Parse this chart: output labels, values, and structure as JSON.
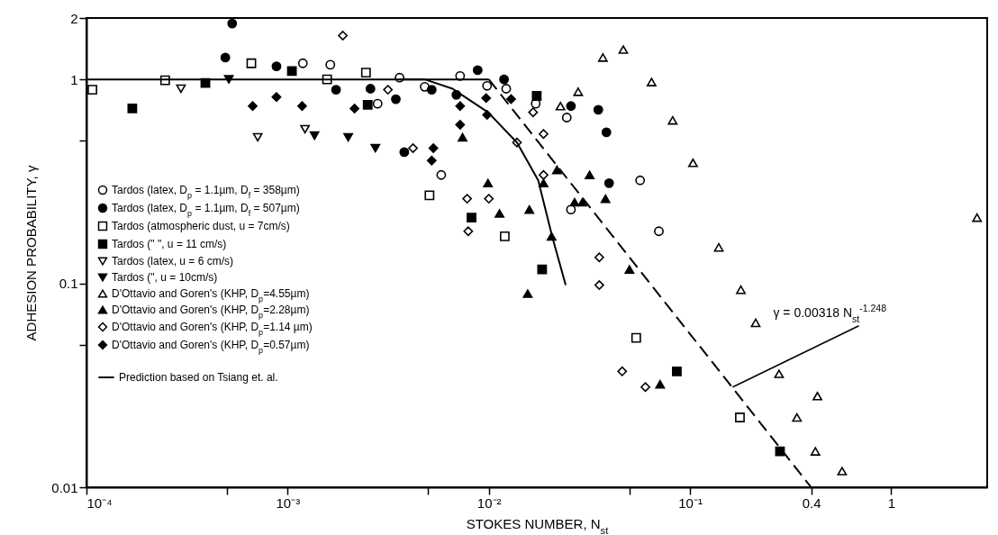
{
  "chart_data": {
    "type": "scatter",
    "xlabel": "STOKES NUMBER, N$_{st}$",
    "ylabel": "ADHESION PROBABILITY, γ",
    "log": "xy",
    "xlim": [
      0.0001,
      3
    ],
    "ylim": [
      0.01,
      2
    ],
    "xticks": [
      {
        "value": 0.0001,
        "label": "10⁻⁴"
      },
      {
        "value": 0.0005,
        "label": null
      },
      {
        "value": 0.001,
        "label": "10⁻³"
      },
      {
        "value": 0.005,
        "label": null
      },
      {
        "value": 0.01,
        "label": "10⁻²"
      },
      {
        "value": 0.05,
        "label": null
      },
      {
        "value": 0.1,
        "label": "10⁻¹"
      },
      0.4,
      1
    ],
    "yticks": [
      0.01,
      {
        "value": 0.05,
        "label": null
      },
      0.1,
      {
        "value": 0.5,
        "label": null
      },
      1,
      2
    ],
    "legend": "left",
    "series": [
      {
        "name": "Tardos (latex, D$_{p}$ = 1.1µm, D$_{f}$ = 358µm)",
        "marker": "circle",
        "color": "#ffffff",
        "x": [
          0.00119,
          0.00163,
          0.0028,
          0.0036,
          0.0048,
          0.0058,
          0.0072,
          0.0098,
          0.0122,
          0.0171,
          0.0244,
          0.0256,
          0.0565,
          0.07
        ],
        "values": [
          1.2,
          1.18,
          0.76,
          1.02,
          0.92,
          0.34,
          1.04,
          0.93,
          0.9,
          0.76,
          0.65,
          0.23,
          0.32,
          0.18
        ]
      },
      {
        "name": "Tardos (latex, D$_{p}$ = 1.1µm, D$_{f}$ = 507µm)",
        "marker": "circle",
        "color": "#000000",
        "x": [
          0.00049,
          0.00053,
          0.00088,
          0.00174,
          0.00258,
          0.00345,
          0.0038,
          0.0052,
          0.0069,
          0.0088,
          0.0119,
          0.0256,
          0.035,
          0.0384,
          0.0396
        ],
        "values": [
          1.28,
          1.88,
          1.16,
          0.89,
          0.9,
          0.8,
          0.44,
          0.89,
          0.84,
          1.11,
          1.0,
          0.74,
          0.71,
          0.55,
          0.31
        ]
      },
      {
        "name": "Tardos (atmospheric dust, u = 7cm/s)",
        "marker": "square",
        "color": "#ffffff",
        "x": [
          0.000107,
          0.000246,
          0.00066,
          0.00157,
          0.00245,
          0.00507,
          0.012,
          0.054,
          0.177
        ],
        "values": [
          0.89,
          0.99,
          1.2,
          1.0,
          1.08,
          0.27,
          0.17,
          0.054,
          0.022
        ]
      },
      {
        "name": "Tardos (\"   \", u = 11 cm/s)",
        "marker": "square",
        "color": "#000000",
        "x": [
          0.000169,
          0.00039,
          0.00105,
          0.0025,
          0.0173,
          0.0082,
          0.0184,
          0.086,
          0.28
        ],
        "values": [
          0.72,
          0.96,
          1.1,
          0.75,
          0.83,
          0.21,
          0.117,
          0.037,
          0.015
        ]
      },
      {
        "name": "Tardos (latex, u = 6 cm/s)",
        "marker": "triangle-down",
        "color": "#ffffff",
        "x": [
          0.000295,
          0.00071,
          0.00122
        ],
        "values": [
          0.9,
          0.52,
          0.57
        ]
      },
      {
        "name": "Tardos (\", u = 10cm/s)",
        "marker": "triangle-down",
        "color": "#000000",
        "x": [
          0.00051,
          0.00136,
          0.002,
          0.00273
        ],
        "values": [
          1.0,
          0.53,
          0.52,
          0.46
        ]
      },
      {
        "name": "D'Ottavio and Goren's (KHP, D$_{p}$=4.55µm)",
        "marker": "triangle",
        "color": "#ffffff",
        "x": [
          0.0227,
          0.0278,
          0.0369,
          0.0466,
          0.0644,
          0.082,
          0.1035,
          0.139,
          0.179,
          0.212,
          0.277,
          0.34,
          0.43,
          0.42,
          0.57,
          2.67
        ],
        "values": [
          0.74,
          0.87,
          1.28,
          1.4,
          0.97,
          0.63,
          0.39,
          0.15,
          0.093,
          0.064,
          0.036,
          0.022,
          0.028,
          0.015,
          0.012,
          0.21
        ]
      },
      {
        "name": "D'Ottavio and Goren's (KHP, D$_{p}$=2.28µm)",
        "marker": "triangle",
        "color": "#000000",
        "x": [
          0.0074,
          0.0099,
          0.0113,
          0.0159,
          0.0187,
          0.0218,
          0.0205,
          0.0156,
          0.0267,
          0.0292,
          0.0317,
          0.038,
          0.05,
          0.071
        ],
        "values": [
          0.52,
          0.31,
          0.22,
          0.23,
          0.31,
          0.36,
          0.17,
          0.089,
          0.25,
          0.25,
          0.34,
          0.26,
          0.117,
          0.032
        ]
      },
      {
        "name": "D'Ottavio and Goren's (KHP, D$_{p}$=1.14 µm)",
        "marker": "diamond",
        "color": "#ffffff",
        "x": [
          0.00188,
          0.00315,
          0.0042,
          0.0078,
          0.0079,
          0.01,
          0.0138,
          0.0166,
          0.0187,
          0.0187,
          0.0354,
          0.0354,
          0.046,
          0.06
        ],
        "values": [
          1.64,
          0.89,
          0.46,
          0.26,
          0.18,
          0.26,
          0.49,
          0.69,
          0.54,
          0.34,
          0.134,
          0.098,
          0.037,
          0.031
        ]
      },
      {
        "name": "D'Ottavio and Goren's (KHP, D$_{p}$=0.57µm)",
        "marker": "diamond",
        "color": "#000000",
        "x": [
          0.00067,
          0.00088,
          0.00118,
          0.00215,
          0.0052,
          0.0053,
          0.0072,
          0.0072,
          0.0097,
          0.0098,
          0.0129
        ],
        "values": [
          0.74,
          0.82,
          0.74,
          0.72,
          0.4,
          0.46,
          0.74,
          0.6,
          0.81,
          0.67,
          0.8
        ]
      },
      {
        "name": "Prediction based on Tsiang et. al.",
        "type": "line",
        "line_style": "solid",
        "color": "#000000",
        "x": [
          0.0036,
          0.0048,
          0.0066,
          0.0099,
          0.0138,
          0.0176,
          0.0207,
          0.0241
        ],
        "values": [
          1,
          1,
          0.9,
          0.69,
          0.49,
          0.32,
          0.168,
          0.098
        ]
      },
      {
        "type": "line",
        "line_style": "solid",
        "color": "#000000",
        "x": [
          0.0001,
          0.01
        ],
        "values": [
          1,
          1
        ]
      },
      {
        "type": "line",
        "line_style": "dashed",
        "color": "#000000",
        "x": [
          0.01,
          0.4
        ],
        "values": [
          1,
          0.01
        ]
      }
    ],
    "annotations": [
      {
        "text": "γ = 0.00318 N$_{st}$$^{-1.248}$",
        "x": 0.163,
        "y": 0.031
      }
    ]
  }
}
